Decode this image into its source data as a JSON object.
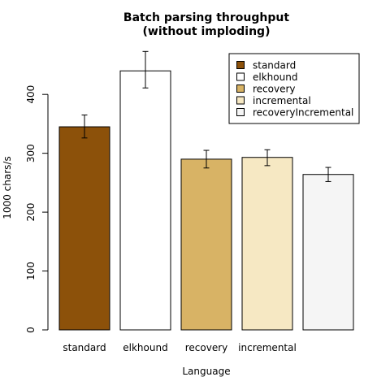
{
  "chart_data": {
    "type": "bar",
    "title": [
      "Batch parsing throughput",
      "(without imploding)"
    ],
    "xlabel": "Language",
    "ylabel": "1000 chars/s",
    "ylim": [
      0,
      480
    ],
    "yticks": [
      0,
      100,
      200,
      300,
      400
    ],
    "grid": false,
    "legend_position": "top-right",
    "categories": [
      "standard",
      "elkhound",
      "recovery",
      "incremental",
      ""
    ],
    "series": [
      {
        "name": "standard",
        "value": 345,
        "error": [
          326,
          365
        ],
        "color": "#8c510a"
      },
      {
        "name": "elkhound",
        "value": 440,
        "error": [
          411,
          473
        ],
        "color": "#ffffff"
      },
      {
        "name": "recovery",
        "value": 290,
        "error": [
          275,
          305
        ],
        "color": "#d8b365"
      },
      {
        "name": "incremental",
        "value": 293,
        "error": [
          279,
          306
        ],
        "color": "#f6e8c3"
      },
      {
        "name": "recoveryIncremental",
        "value": 264,
        "error": [
          252,
          276
        ],
        "color": "#f5f5f5"
      }
    ]
  }
}
